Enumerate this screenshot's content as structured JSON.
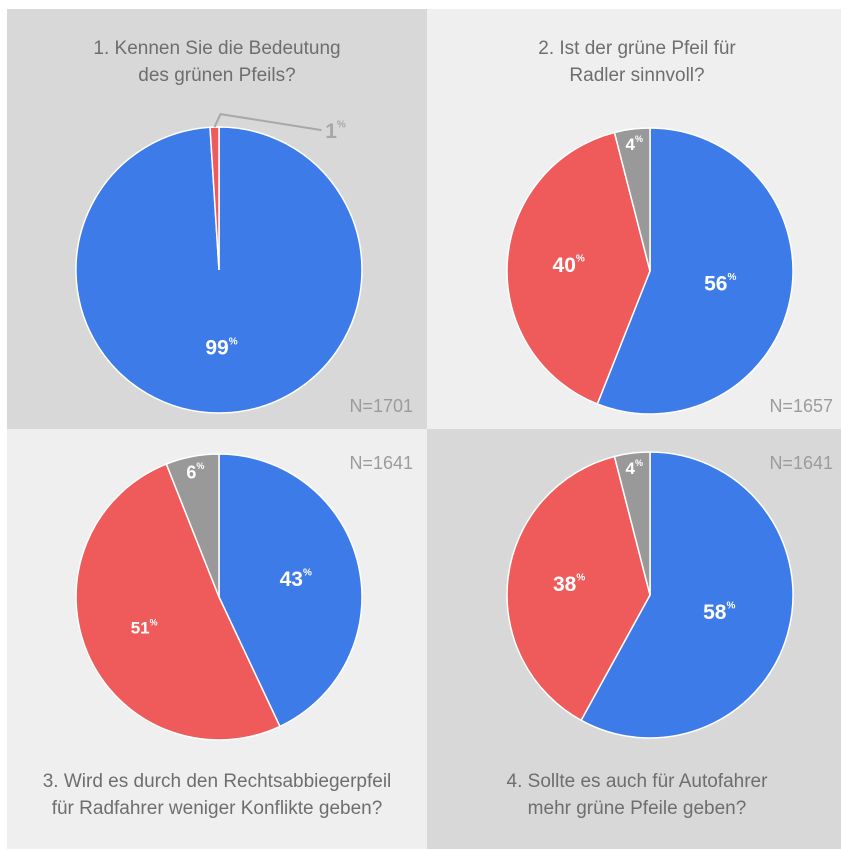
{
  "colors": {
    "blue": "#3d7be8",
    "red": "#ef5b5b",
    "gray": "#999999",
    "label": "#ffffff",
    "muted": "#a8a8a8"
  },
  "chart_data": [
    {
      "type": "pie",
      "title_lines": [
        "1. Kennen Sie die Bedeutung",
        "des grünen Pfeils?"
      ],
      "n_label": "N=1701",
      "slices": [
        {
          "value": 99,
          "label": "99",
          "color": "#3d7be8"
        },
        {
          "value": 1,
          "label": "1",
          "color": "#ef5b5b"
        }
      ]
    },
    {
      "type": "pie",
      "title_lines": [
        "2. Ist der grüne Pfeil für",
        "Radler sinnvoll?"
      ],
      "n_label": "N=1657",
      "slices": [
        {
          "value": 56,
          "label": "56",
          "color": "#3d7be8"
        },
        {
          "value": 40,
          "label": "40",
          "color": "#ef5b5b"
        },
        {
          "value": 4,
          "label": "4",
          "color": "#999999"
        }
      ]
    },
    {
      "type": "pie",
      "title_lines": [
        "3. Wird es durch den Rechtsabbiegerpfeil",
        "für Radfahrer weniger Konflikte geben?"
      ],
      "n_label": "N=1641",
      "slices": [
        {
          "value": 43,
          "label": "43",
          "color": "#3d7be8"
        },
        {
          "value": 51,
          "label": "51",
          "color": "#ef5b5b"
        },
        {
          "value": 6,
          "label": "6",
          "color": "#999999"
        }
      ]
    },
    {
      "type": "pie",
      "title_lines": [
        "4. Sollte es auch für Autofahrer",
        "mehr grüne Pfeile geben?"
      ],
      "n_label": "N=1641",
      "slices": [
        {
          "value": 58,
          "label": "58",
          "color": "#3d7be8"
        },
        {
          "value": 38,
          "label": "38",
          "color": "#ef5b5b"
        },
        {
          "value": 4,
          "label": "4",
          "color": "#999999"
        }
      ]
    }
  ],
  "percent_sign": "%"
}
